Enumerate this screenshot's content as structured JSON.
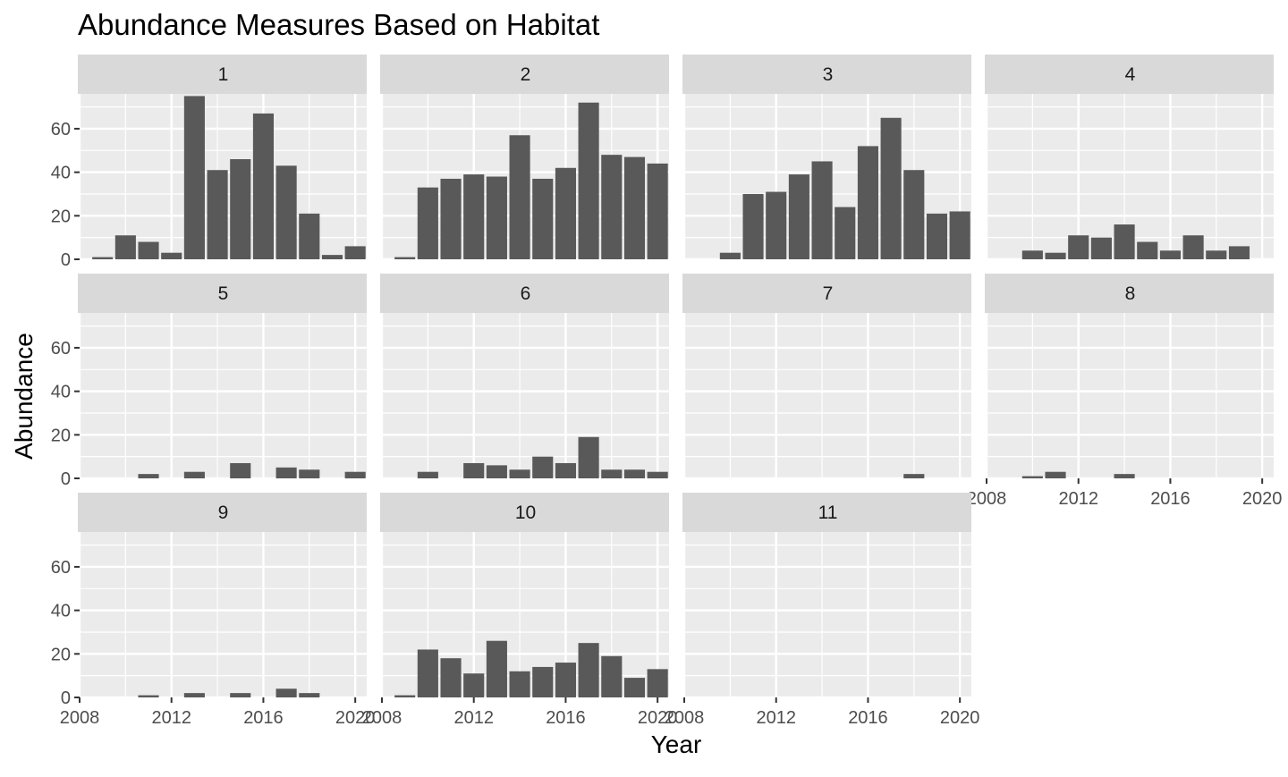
{
  "chart_data": {
    "type": "bar",
    "title": "Abundance Measures Based on Habitat",
    "xlabel": "Year",
    "ylabel": "Abundance",
    "xlim": [
      2008,
      2020.5
    ],
    "ylim": [
      0,
      76
    ],
    "x_ticks": [
      "2008",
      "2012",
      "2016",
      "2020"
    ],
    "y_ticks": [
      "0",
      "20",
      "40",
      "60"
    ],
    "years": [
      2009,
      2010,
      2011,
      2012,
      2013,
      2014,
      2015,
      2016,
      2017,
      2018,
      2019,
      2020
    ],
    "grid": true,
    "legend": "none",
    "colors": {
      "bar": "#595959",
      "panel": "#ebebeb",
      "grid": "#ffffff",
      "strip": "#d9d9d9"
    },
    "panels": [
      {
        "label": "1",
        "values": [
          1,
          11,
          8,
          3,
          75,
          41,
          46,
          67,
          43,
          21,
          2,
          6
        ]
      },
      {
        "label": "2",
        "values": [
          1,
          33,
          37,
          39,
          38,
          57,
          37,
          42,
          72,
          48,
          47,
          44
        ]
      },
      {
        "label": "3",
        "values": [
          0,
          3,
          30,
          31,
          39,
          45,
          24,
          52,
          65,
          41,
          21,
          22
        ]
      },
      {
        "label": "4",
        "values": [
          0,
          4,
          3,
          11,
          10,
          16,
          8,
          4,
          11,
          4,
          6,
          0
        ]
      },
      {
        "label": "5",
        "values": [
          0,
          0,
          2,
          0,
          3,
          0,
          7,
          0,
          5,
          4,
          0,
          3
        ]
      },
      {
        "label": "6",
        "values": [
          0,
          3,
          0,
          7,
          6,
          4,
          10,
          7,
          19,
          4,
          4,
          3
        ]
      },
      {
        "label": "7",
        "values": [
          0,
          0,
          0,
          0,
          0,
          0,
          0,
          0,
          0,
          2,
          0,
          0
        ]
      },
      {
        "label": "8",
        "values": [
          0,
          1,
          3,
          0,
          0,
          2,
          0,
          0,
          0,
          0,
          0,
          0
        ]
      },
      {
        "label": "9",
        "values": [
          0,
          0,
          1,
          0,
          2,
          0,
          2,
          0,
          4,
          2,
          0,
          0
        ]
      },
      {
        "label": "10",
        "values": [
          1,
          22,
          18,
          11,
          26,
          12,
          14,
          16,
          25,
          19,
          9,
          13
        ]
      },
      {
        "label": "11",
        "values": [
          0,
          0,
          0,
          0,
          0,
          0,
          0,
          0,
          0,
          0,
          0,
          0
        ]
      }
    ]
  }
}
